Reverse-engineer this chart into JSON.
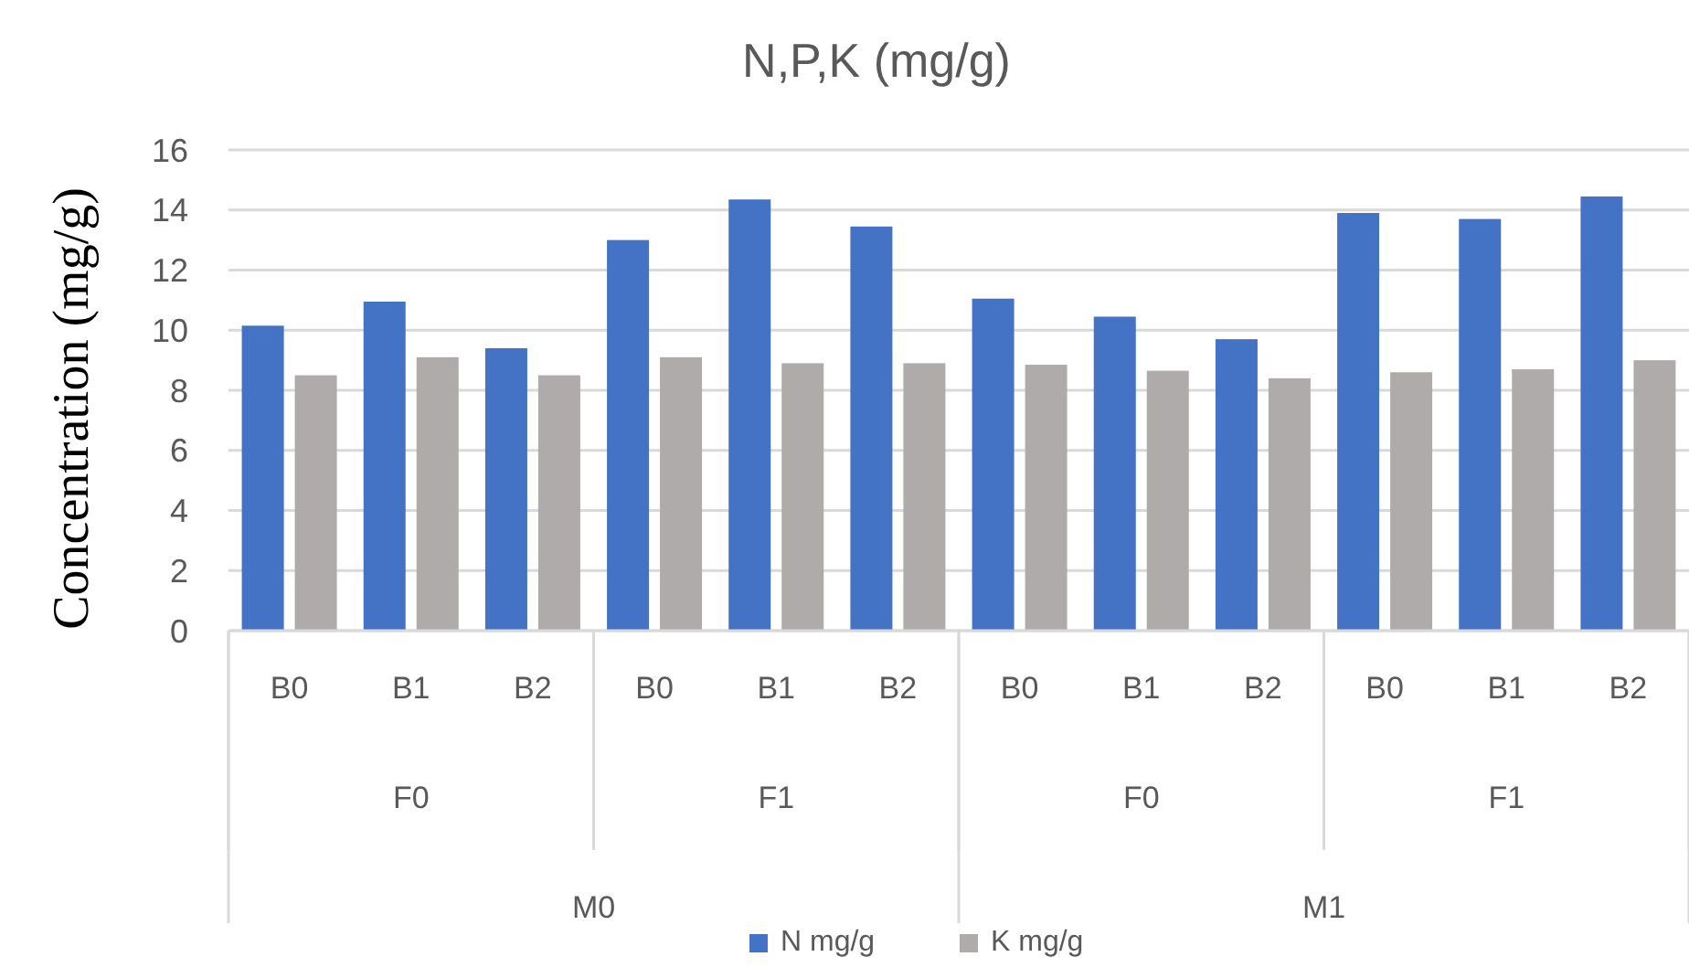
{
  "chart_data": {
    "type": "bar",
    "title": "N,P,K (mg/g)",
    "ylabel": "Concentration (mg/g)",
    "categories": [
      "B0",
      "B1",
      "B2",
      "B0",
      "B1",
      "B2",
      "B0",
      "B1",
      "B2",
      "B0",
      "B1",
      "B2"
    ],
    "annotations": [
      "F0",
      "F1",
      "F0",
      "F1",
      "M0",
      "M1"
    ],
    "series": [
      {
        "name": "N mg/g",
        "color": "#4472c4",
        "values": [
          10.15,
          10.95,
          9.4,
          13.0,
          14.35,
          13.45,
          11.05,
          10.45,
          9.7,
          13.9,
          13.7,
          14.45
        ]
      },
      {
        "name": "K mg/g",
        "color": "#afabab",
        "values": [
          8.5,
          9.1,
          8.5,
          9.1,
          8.9,
          8.9,
          8.85,
          8.65,
          8.4,
          8.6,
          8.7,
          9.0
        ]
      }
    ],
    "ylim": [
      0,
      16
    ],
    "yticks": [
      0,
      2,
      4,
      6,
      8,
      10,
      12,
      14,
      16
    ],
    "grid": "y",
    "legend": "bottom"
  }
}
